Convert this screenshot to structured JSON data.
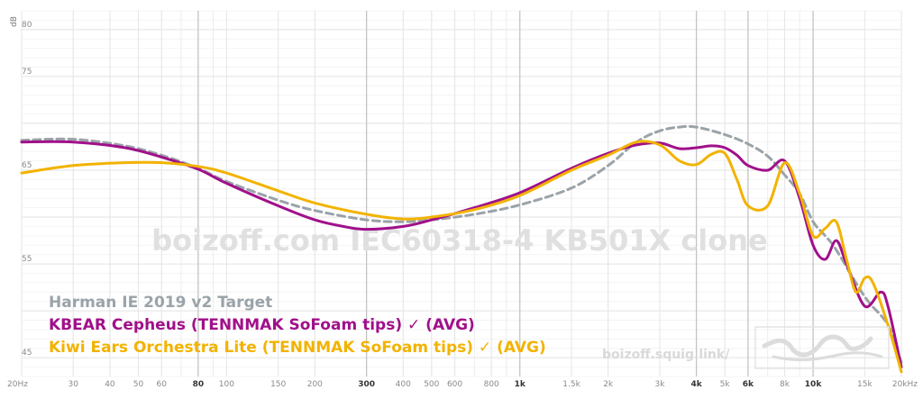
{
  "chart_data": {
    "type": "line",
    "xscale": "log",
    "xlim": [
      20,
      20000
    ],
    "ylim": [
      43,
      82
    ],
    "ylabel": "dB",
    "yticks": [
      45,
      55,
      65,
      75,
      80
    ],
    "xticks": [
      {
        "v": 20,
        "label": "20Hz",
        "major": false
      },
      {
        "v": 30,
        "label": "30",
        "major": false
      },
      {
        "v": 40,
        "label": "40",
        "major": false
      },
      {
        "v": 50,
        "label": "50",
        "major": false
      },
      {
        "v": 60,
        "label": "60",
        "major": false
      },
      {
        "v": 80,
        "label": "80",
        "major": true
      },
      {
        "v": 100,
        "label": "100",
        "major": false
      },
      {
        "v": 150,
        "label": "150",
        "major": false
      },
      {
        "v": 200,
        "label": "200",
        "major": false
      },
      {
        "v": 300,
        "label": "300",
        "major": true
      },
      {
        "v": 400,
        "label": "400",
        "major": false
      },
      {
        "v": 500,
        "label": "500",
        "major": false
      },
      {
        "v": 600,
        "label": "600",
        "major": false
      },
      {
        "v": 800,
        "label": "800",
        "major": false
      },
      {
        "v": 1000,
        "label": "1k",
        "major": true
      },
      {
        "v": 1500,
        "label": "1.5k",
        "major": false
      },
      {
        "v": 2000,
        "label": "2k",
        "major": false
      },
      {
        "v": 3000,
        "label": "3k",
        "major": false
      },
      {
        "v": 4000,
        "label": "4k",
        "major": true
      },
      {
        "v": 5000,
        "label": "5k",
        "major": false
      },
      {
        "v": 6000,
        "label": "6k",
        "major": true
      },
      {
        "v": 8000,
        "label": "8k",
        "major": false
      },
      {
        "v": 10000,
        "label": "10k",
        "major": true
      },
      {
        "v": 15000,
        "label": "15k",
        "major": false
      },
      {
        "v": 20000,
        "label": "20kHz",
        "major": false
      }
    ],
    "watermark": "boizoff.com IEC60318-4 KB501X clone",
    "site": "boizoff.squig.link/",
    "series": [
      {
        "name": "Harman IE 2019 v2 Target",
        "color": "#9aa3a8",
        "dashed": true,
        "points": [
          [
            20,
            68.2
          ],
          [
            30,
            68.3
          ],
          [
            45,
            67.6
          ],
          [
            60,
            66.6
          ],
          [
            80,
            65.2
          ],
          [
            100,
            63.8
          ],
          [
            150,
            61.8
          ],
          [
            200,
            60.7
          ],
          [
            300,
            59.7
          ],
          [
            400,
            59.5
          ],
          [
            500,
            59.7
          ],
          [
            700,
            60.3
          ],
          [
            1000,
            61.3
          ],
          [
            1500,
            63.1
          ],
          [
            2000,
            65.5
          ],
          [
            2500,
            68.0
          ],
          [
            3000,
            69.2
          ],
          [
            3500,
            69.6
          ],
          [
            4000,
            69.6
          ],
          [
            5000,
            68.8
          ],
          [
            6000,
            67.8
          ],
          [
            7000,
            66.5
          ],
          [
            8000,
            64.5
          ],
          [
            9000,
            62.5
          ],
          [
            10000,
            59.5
          ],
          [
            11000,
            58.0
          ],
          [
            12000,
            56.5
          ],
          [
            15000,
            51.5
          ],
          [
            18000,
            48.5
          ],
          [
            20000,
            44.5
          ]
        ]
      },
      {
        "name": "KBEAR Cepheus (TENNMAK SoFoam tips) ✓ (AVG)",
        "color": "#a0108a",
        "dashed": false,
        "points": [
          [
            20,
            68.0
          ],
          [
            30,
            68.0
          ],
          [
            45,
            67.4
          ],
          [
            60,
            66.4
          ],
          [
            80,
            65.1
          ],
          [
            100,
            63.6
          ],
          [
            150,
            61.2
          ],
          [
            200,
            59.7
          ],
          [
            250,
            59.0
          ],
          [
            300,
            58.7
          ],
          [
            400,
            59.0
          ],
          [
            500,
            59.7
          ],
          [
            700,
            61.0
          ],
          [
            1000,
            62.6
          ],
          [
            1500,
            65.2
          ],
          [
            2000,
            66.8
          ],
          [
            2500,
            67.7
          ],
          [
            3000,
            67.9
          ],
          [
            3500,
            67.3
          ],
          [
            4000,
            67.4
          ],
          [
            4500,
            67.6
          ],
          [
            5000,
            67.4
          ],
          [
            5500,
            66.6
          ],
          [
            6000,
            65.5
          ],
          [
            7000,
            65.0
          ],
          [
            8000,
            66.0
          ],
          [
            9000,
            62.0
          ],
          [
            10000,
            57.0
          ],
          [
            11000,
            55.5
          ],
          [
            12000,
            57.5
          ],
          [
            13000,
            55.0
          ],
          [
            15000,
            50.5
          ],
          [
            17000,
            52.0
          ],
          [
            18000,
            50.5
          ],
          [
            20000,
            44.0
          ]
        ]
      },
      {
        "name": "Kiwi Ears Orchestra Lite (TENNMAK SoFoam tips) ✓ (AVG)",
        "color": "#f2b300",
        "dashed": false,
        "points": [
          [
            20,
            64.7
          ],
          [
            30,
            65.5
          ],
          [
            45,
            65.8
          ],
          [
            60,
            65.8
          ],
          [
            80,
            65.4
          ],
          [
            100,
            64.7
          ],
          [
            150,
            62.8
          ],
          [
            200,
            61.5
          ],
          [
            300,
            60.3
          ],
          [
            400,
            59.8
          ],
          [
            500,
            60.0
          ],
          [
            700,
            60.8
          ],
          [
            1000,
            62.3
          ],
          [
            1500,
            65.0
          ],
          [
            2000,
            66.6
          ],
          [
            2500,
            68.0
          ],
          [
            3000,
            67.7
          ],
          [
            3500,
            66.0
          ],
          [
            4000,
            65.6
          ],
          [
            4500,
            66.7
          ],
          [
            5000,
            66.8
          ],
          [
            5500,
            64.0
          ],
          [
            6000,
            61.2
          ],
          [
            7000,
            61.2
          ],
          [
            8000,
            65.8
          ],
          [
            9000,
            62.5
          ],
          [
            10000,
            58.0
          ],
          [
            11000,
            58.8
          ],
          [
            12000,
            59.5
          ],
          [
            13000,
            55.5
          ],
          [
            14000,
            52.0
          ],
          [
            15000,
            53.5
          ],
          [
            16000,
            53.0
          ],
          [
            18000,
            48.5
          ],
          [
            20000,
            43.5
          ]
        ]
      }
    ]
  }
}
